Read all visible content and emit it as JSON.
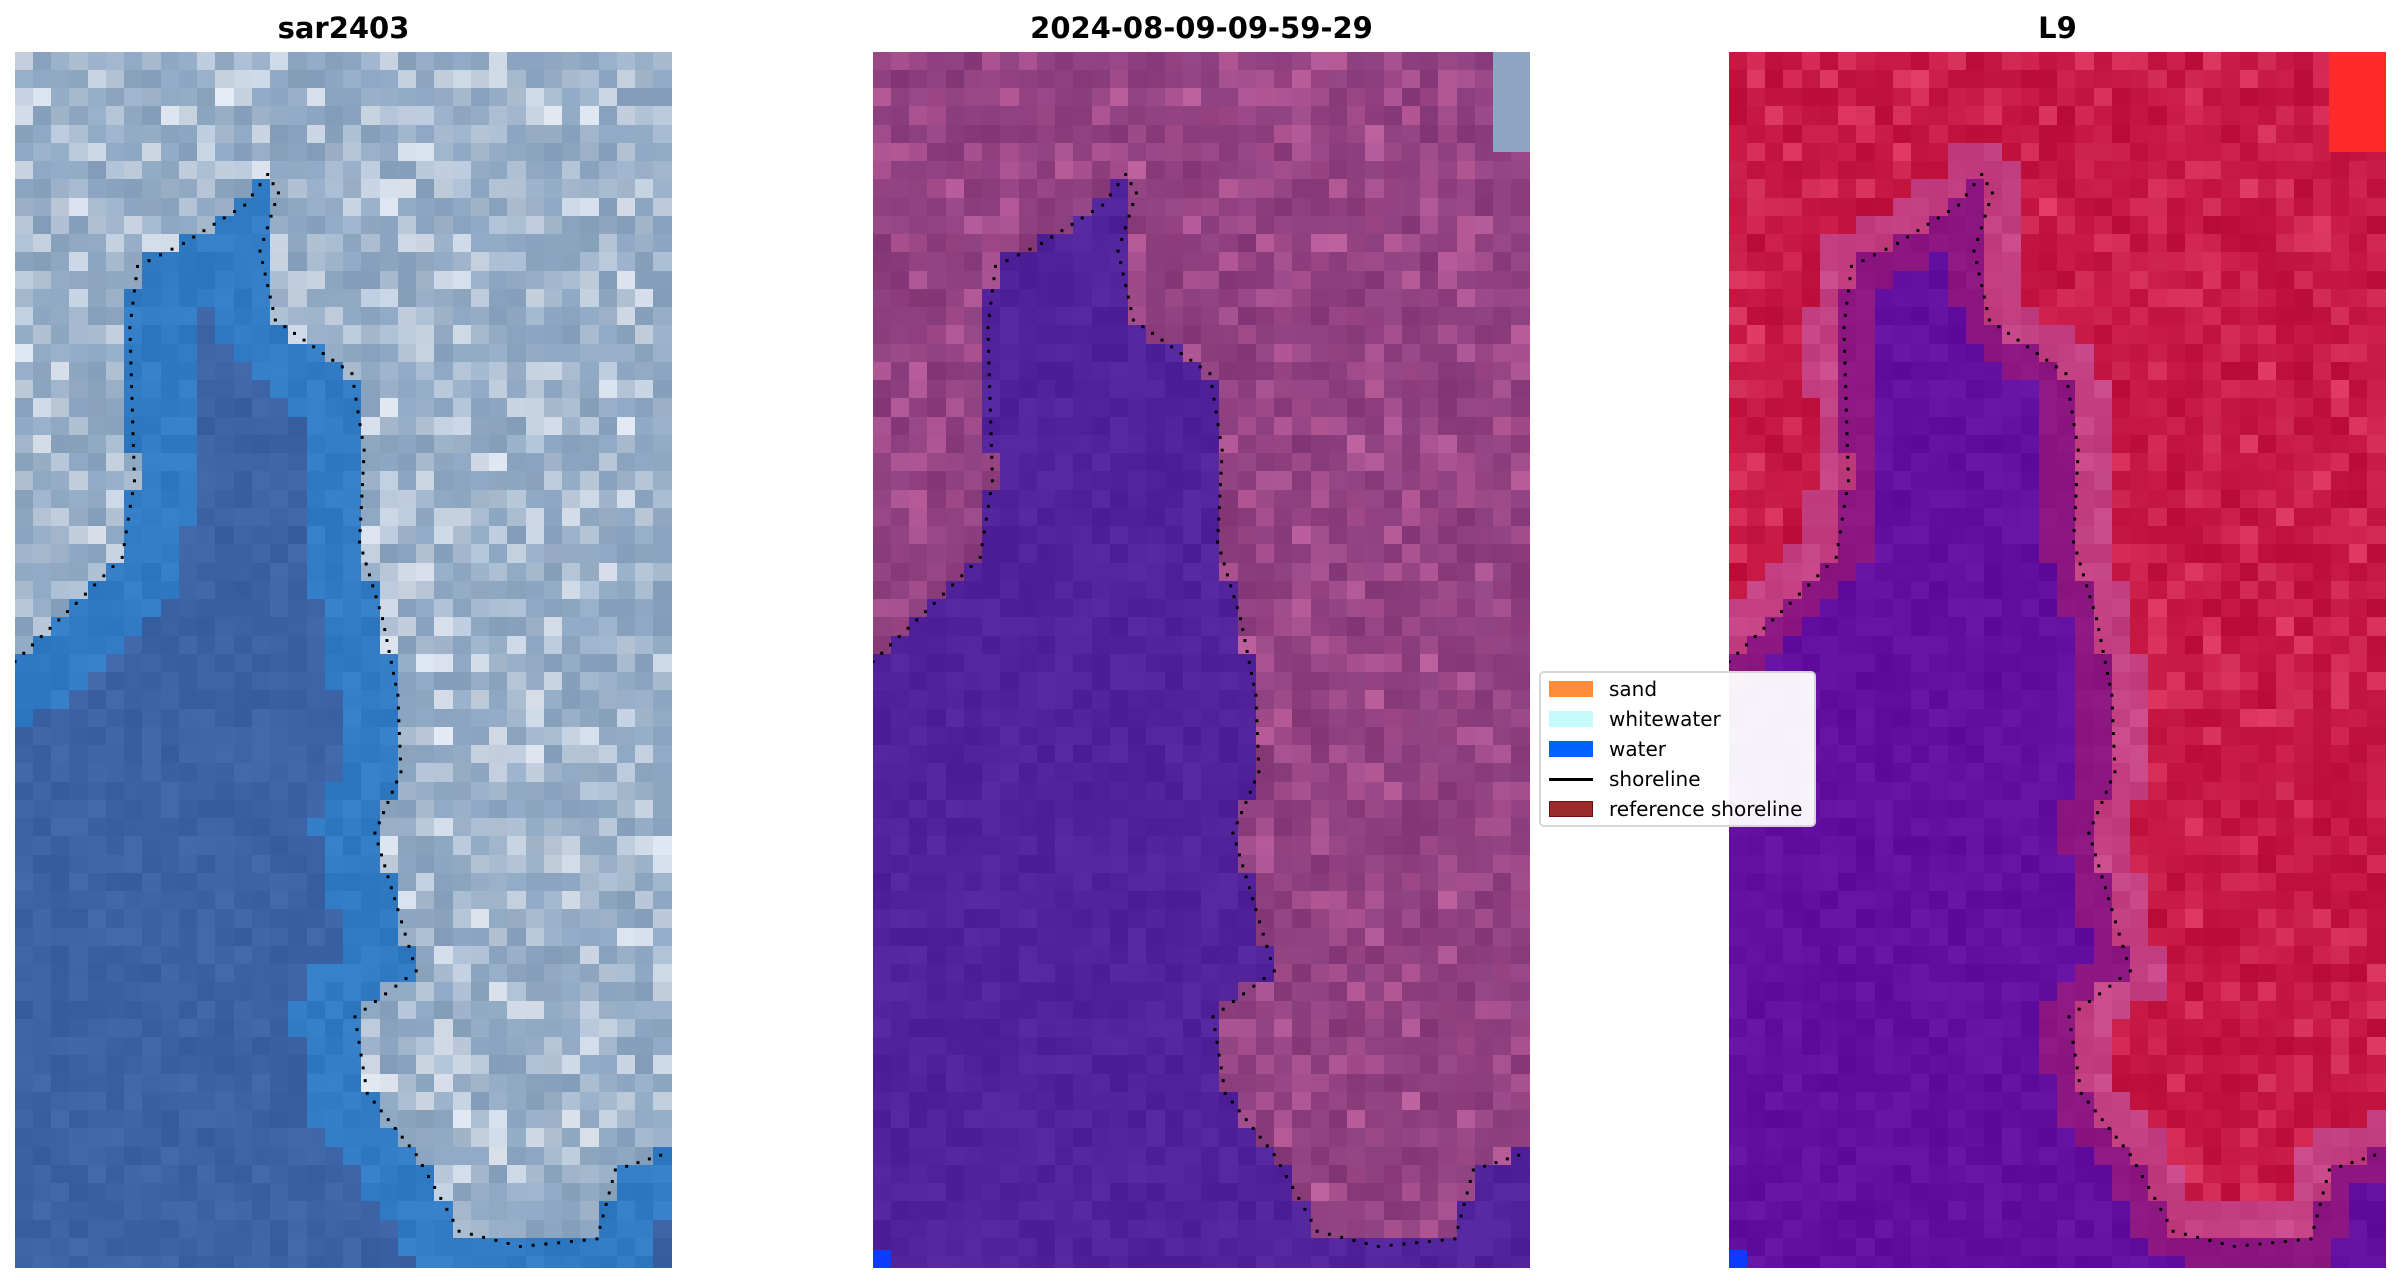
{
  "panels": [
    {
      "title": "sar2403",
      "palette": {
        "water": "#3b63a6",
        "land": "#8ba5c0",
        "bright": "#e8ecf4"
      }
    },
    {
      "title": "2024-08-09-09-59-29",
      "palette": {
        "water": "#52239a",
        "land": "#8a3d7c",
        "bright": "#c0609e"
      }
    },
    {
      "title": "L9",
      "palette": {
        "water": "#620fa2",
        "land": "#c2133e",
        "bright": "#e03c66"
      }
    }
  ],
  "legend": {
    "items": [
      {
        "label": "sand",
        "type": "patch",
        "color": "#ff8c3a"
      },
      {
        "label": "whitewater",
        "type": "patch",
        "color": "#c6fbfc"
      },
      {
        "label": "water",
        "type": "patch",
        "color": "#0061ff"
      },
      {
        "label": "shoreline",
        "type": "line",
        "color": "#000000"
      },
      {
        "label": "reference shoreline",
        "type": "patch",
        "color": "#9a2c2c"
      }
    ]
  }
}
